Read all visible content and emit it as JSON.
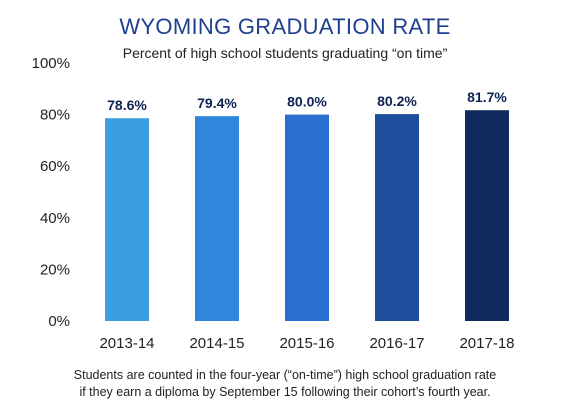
{
  "chart_data": {
    "type": "bar",
    "title": "WYOMING GRADUATION RATE",
    "subtitle": "Percent of high school students graduating “on time”",
    "xlabel": "",
    "ylabel": "",
    "ylim": [
      0,
      100
    ],
    "yticks": [
      "0%",
      "20%",
      "40%",
      "60%",
      "80%",
      "100%"
    ],
    "ytick_values": [
      0,
      20,
      40,
      60,
      80,
      100
    ],
    "grid": false,
    "categories": [
      "2013-14",
      "2014-15",
      "2015-16",
      "2016-17",
      "2017-18"
    ],
    "values": [
      78.6,
      79.4,
      80.0,
      80.2,
      81.7
    ],
    "data_labels": [
      "78.6%",
      "79.4%",
      "80.0%",
      "80.2%",
      "81.7%"
    ],
    "colors": [
      "#3a9fe0",
      "#2f86dc",
      "#2a6fd0",
      "#1e4f9c",
      "#0e2a5e"
    ],
    "footnote": [
      "Students are counted in the four-year (“on-time”) high school graduation rate",
      "if they earn a diploma by September 15 following their cohort’s fourth year."
    ]
  }
}
